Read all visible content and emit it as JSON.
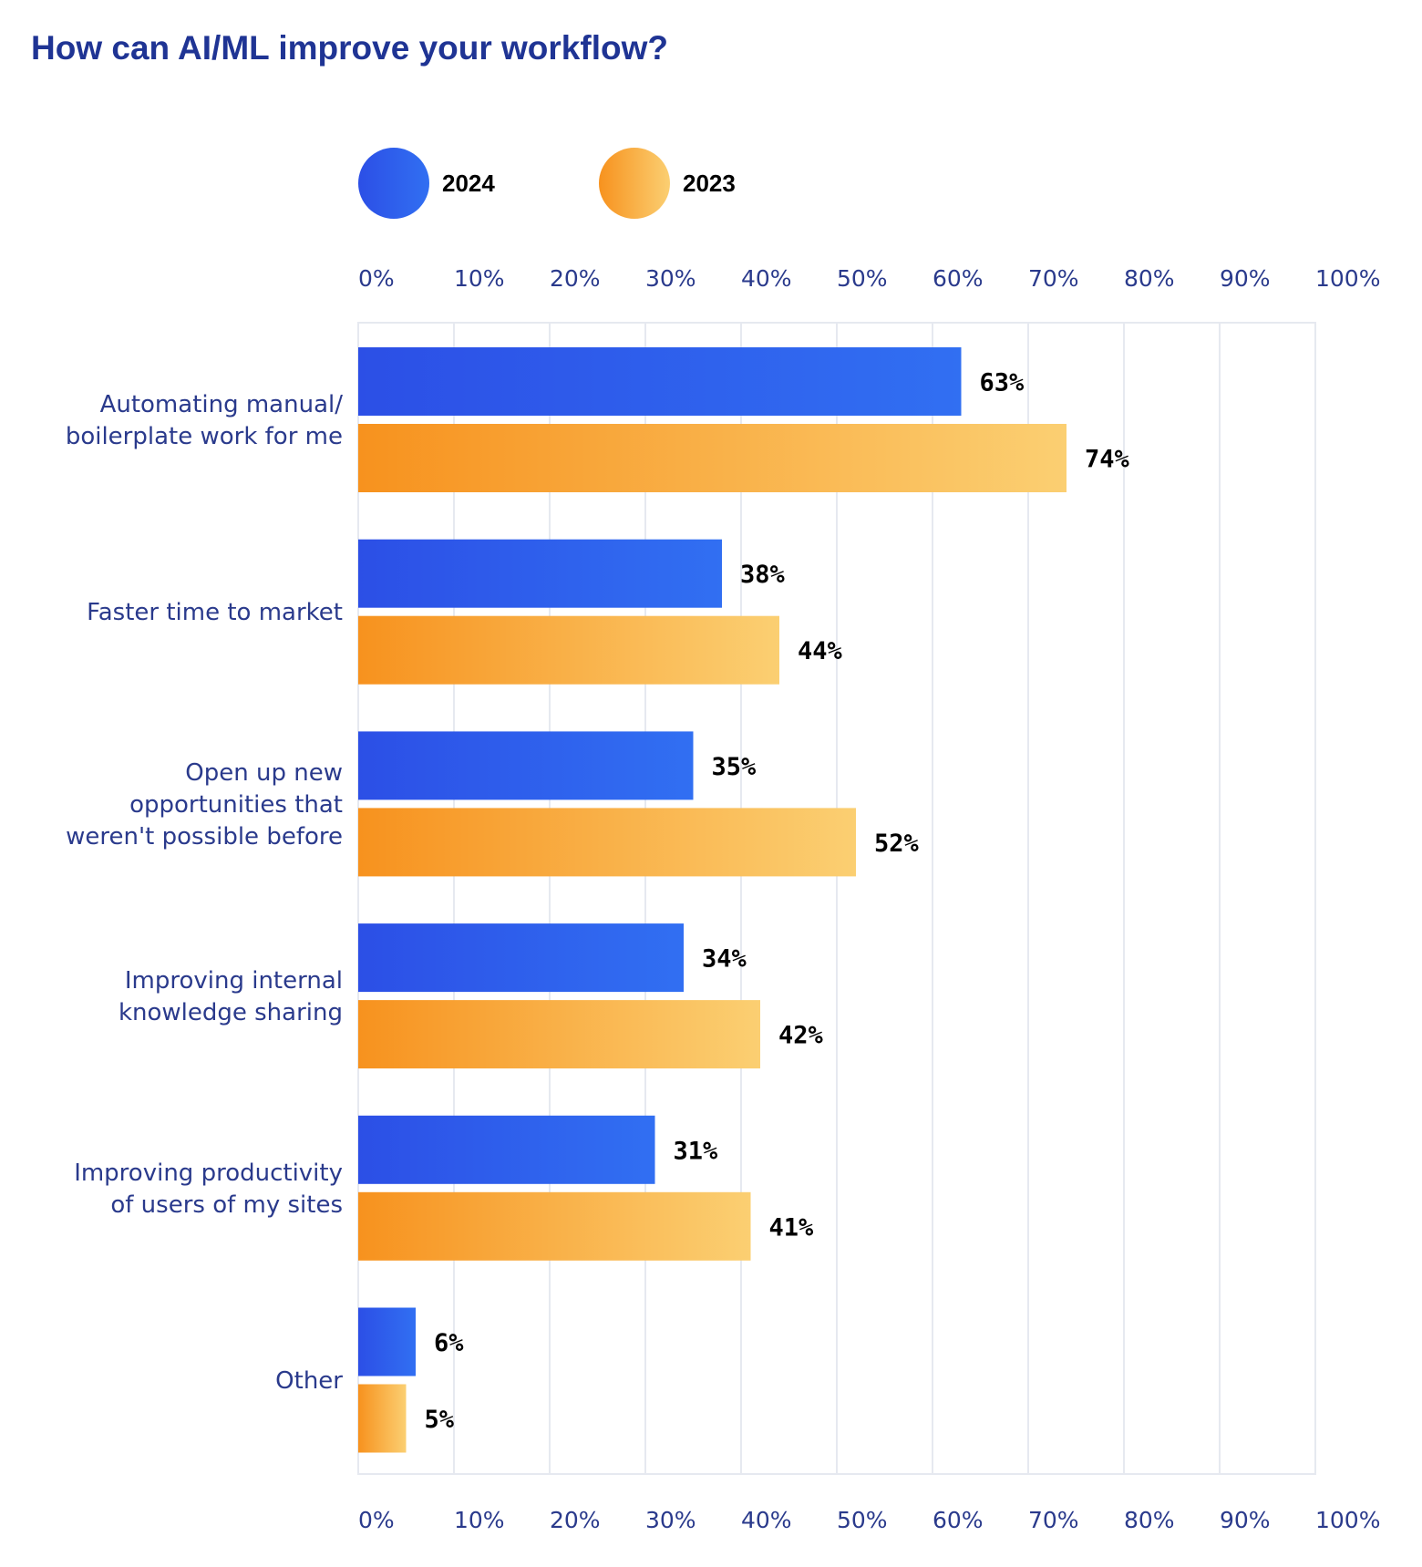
{
  "title": "How can AI/ML improve your workflow?",
  "chart_data": {
    "type": "bar",
    "orientation": "horizontal",
    "title": "How can AI/ML improve your workflow?",
    "categories": [
      [
        "Automating manual/",
        "boilerplate work for me"
      ],
      [
        "Faster time to market"
      ],
      [
        "Open up new",
        "opportunities that",
        "weren't possible before"
      ],
      [
        "Improving internal",
        "knowledge sharing"
      ],
      [
        "Improving productivity",
        "of users of my sites"
      ],
      [
        "Other"
      ]
    ],
    "series": [
      {
        "name": "2024",
        "values": [
          63,
          38,
          35,
          34,
          31,
          6
        ],
        "labels": [
          "63%",
          "38%",
          "35%",
          "34%",
          "31%",
          "6%"
        ],
        "color": [
          "#2c4fe6",
          "#316ff2"
        ]
      },
      {
        "name": "2023",
        "values": [
          74,
          44,
          52,
          42,
          41,
          5
        ],
        "labels": [
          "74%",
          "44%",
          "52%",
          "42%",
          "41%",
          "5%"
        ],
        "color": [
          "#f7921e",
          "#fbcf72"
        ]
      }
    ],
    "xlim": [
      0,
      100
    ],
    "ticks": [
      "0%",
      "10%",
      "20%",
      "30%",
      "40%",
      "50%",
      "60%",
      "70%",
      "80%",
      "90%",
      "100%"
    ],
    "grid": true,
    "legend": "top"
  }
}
